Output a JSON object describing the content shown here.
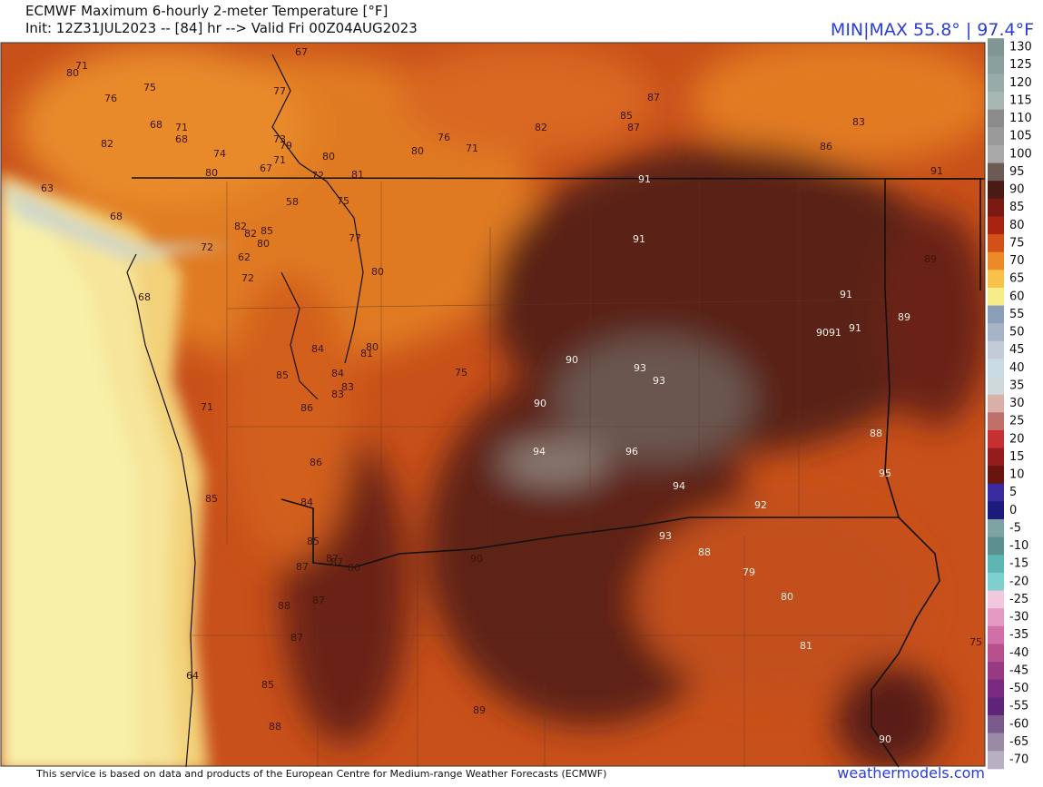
{
  "header": {
    "title": "ECMWF Maximum 6-hourly 2-meter Temperature [°F]",
    "init": "Init: 12Z31JUL2023 -- [84] hr --> Valid Fri 00Z04AUG2023",
    "minmax": "MIN|MAX 55.8° | 97.4°F"
  },
  "colorbar": {
    "ticks": [
      130,
      125,
      120,
      115,
      110,
      105,
      100,
      95,
      90,
      85,
      80,
      75,
      70,
      65,
      60,
      55,
      50,
      45,
      40,
      35,
      30,
      25,
      20,
      15,
      10,
      5,
      0,
      -5,
      -10,
      -15,
      -20,
      -25,
      -30,
      -35,
      -40,
      -45,
      -50,
      -55,
      -60,
      -65,
      -70
    ]
  },
  "map_labels": [
    67,
    80,
    71,
    75,
    76,
    77,
    68,
    71,
    82,
    68,
    74,
    73,
    79,
    80,
    67,
    71,
    80,
    80,
    76,
    71,
    82,
    87,
    85,
    87,
    83,
    86,
    91,
    81,
    72,
    91,
    63,
    68,
    58,
    75,
    82,
    82,
    85,
    80,
    77,
    72,
    62,
    91,
    89,
    80,
    72,
    68,
    91,
    89,
    9091,
    91,
    84,
    80,
    81,
    90,
    93,
    93,
    85,
    84,
    75,
    83,
    83,
    86,
    90,
    71,
    88,
    94,
    96,
    86,
    95,
    94,
    85,
    84,
    92,
    93,
    85,
    88,
    87,
    87,
    90,
    87,
    86,
    79,
    88,
    87,
    80,
    87,
    81,
    75,
    64,
    85,
    89,
    88,
    90
  ],
  "footer": {
    "credit": "This service is based on data and products of the European Centre for Medium-range Weather Forecasts (ECMWF)",
    "site": "weathermodels.com"
  }
}
